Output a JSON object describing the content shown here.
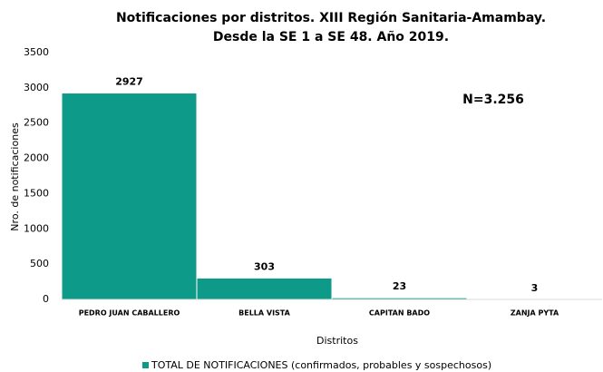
{
  "chart_data": {
    "type": "bar",
    "title": [
      "Notificaciones por distritos. XIII Región Sanitaria-Amambay.",
      "Desde la SE 1 a SE 48. Año 2019."
    ],
    "annotation": "N=3.256",
    "x_label": "Distritos",
    "y_label": "Nro. de notificaciones",
    "categories": [
      "PEDRO JUAN CABALLERO",
      "BELLA VISTA",
      "CAPITAN BADO",
      "ZANJA PYTA"
    ],
    "series": [
      {
        "name": "TOTAL DE NOTIFICACIONES (confirmados, probables y sospechosos)",
        "color": "#0e9a88",
        "values": [
          2927,
          303,
          23,
          3
        ]
      }
    ],
    "ylim": [
      0,
      3500
    ],
    "yticks": [
      0,
      500,
      1000,
      1500,
      2000,
      2500,
      3000,
      3500
    ],
    "grid": false
  }
}
